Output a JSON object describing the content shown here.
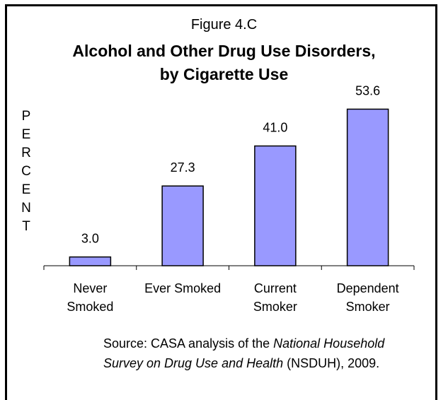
{
  "figure_label": "Figure 4.C",
  "title_line1": "Alcohol and Other Drug Use Disorders,",
  "title_line2": "by Cigarette Use",
  "ylabel_letters": [
    "P",
    "E",
    "R",
    "C",
    "E",
    "N",
    "T"
  ],
  "source": {
    "prefix": "Source:  CASA analysis of the ",
    "italic": "National Household Survey on Drug Use and Health",
    "suffix": " (NSDUH), 2009."
  },
  "colors": {
    "bar_fill": "#9999ff",
    "bar_stroke": "#000000"
  },
  "chart_data": {
    "type": "bar",
    "categories": [
      [
        "Never",
        "Smoked"
      ],
      [
        "Ever Smoked"
      ],
      [
        "Current",
        "Smoker"
      ],
      [
        "Dependent",
        "Smoker"
      ]
    ],
    "values": [
      3.0,
      27.3,
      41.0,
      53.6
    ],
    "value_labels": [
      "3.0",
      "27.3",
      "41.0",
      "53.6"
    ],
    "ylabel": "PERCENT",
    "ylim": [
      0,
      60
    ],
    "grid": false
  }
}
